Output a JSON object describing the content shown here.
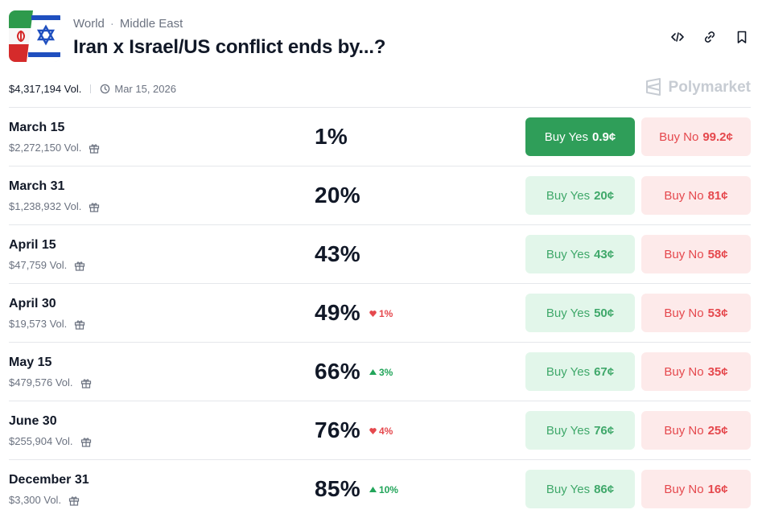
{
  "header": {
    "breadcrumb": [
      "World",
      "Middle East"
    ],
    "title": "Iran x Israel/US conflict ends by...?"
  },
  "meta": {
    "volume": "$4,317,194 Vol.",
    "end_date": "Mar 15, 2026"
  },
  "brand": "Polymarket",
  "colors": {
    "yes_solid": "#2f9e59",
    "yes_light": "#e2f6ea",
    "no_light": "#fdeaea",
    "up": "#22a55a",
    "down": "#e5484d"
  },
  "markets": [
    {
      "name": "March 15",
      "volume": "$2,272,150 Vol.",
      "chance": "1%",
      "delta": null,
      "yes_label": "Buy Yes",
      "yes_price": "0.9¢",
      "no_label": "Buy No",
      "no_price": "99.2¢",
      "selected": true
    },
    {
      "name": "March 31",
      "volume": "$1,238,932 Vol.",
      "chance": "20%",
      "delta": null,
      "yes_label": "Buy Yes",
      "yes_price": "20¢",
      "no_label": "Buy No",
      "no_price": "81¢"
    },
    {
      "name": "April 15",
      "volume": "$47,759 Vol.",
      "chance": "43%",
      "delta": null,
      "yes_label": "Buy Yes",
      "yes_price": "43¢",
      "no_label": "Buy No",
      "no_price": "58¢"
    },
    {
      "name": "April 30",
      "volume": "$19,573 Vol.",
      "chance": "49%",
      "delta": {
        "dir": "down",
        "value": "1%"
      },
      "yes_label": "Buy Yes",
      "yes_price": "50¢",
      "no_label": "Buy No",
      "no_price": "53¢"
    },
    {
      "name": "May 15",
      "volume": "$479,576 Vol.",
      "chance": "66%",
      "delta": {
        "dir": "up",
        "value": "3%"
      },
      "yes_label": "Buy Yes",
      "yes_price": "67¢",
      "no_label": "Buy No",
      "no_price": "35¢"
    },
    {
      "name": "June 30",
      "volume": "$255,904 Vol.",
      "chance": "76%",
      "delta": {
        "dir": "down",
        "value": "4%"
      },
      "yes_label": "Buy Yes",
      "yes_price": "76¢",
      "no_label": "Buy No",
      "no_price": "25¢"
    },
    {
      "name": "December 31",
      "volume": "$3,300 Vol.",
      "chance": "85%",
      "delta": {
        "dir": "up",
        "value": "10%"
      },
      "yes_label": "Buy Yes",
      "yes_price": "86¢",
      "no_label": "Buy No",
      "no_price": "16¢"
    }
  ]
}
